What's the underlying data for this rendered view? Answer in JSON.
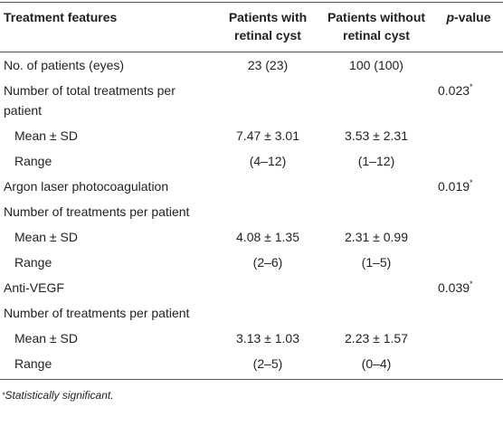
{
  "table": {
    "header": [
      {
        "text": "Treatment features"
      },
      {
        "text": "Patients with retinal cyst"
      },
      {
        "text": "Patients without retinal cyst"
      },
      {
        "italic": "p",
        "text": "-value"
      }
    ],
    "rows": [
      {
        "label": "No. of patients (eyes)",
        "with": "23 (23)",
        "without": "100 (100)"
      },
      {
        "label": "Number of total treatments per patient",
        "p": "0.023",
        "mark": "*"
      },
      {
        "label": "Mean ± SD",
        "indent": true,
        "with": "7.47 ± 3.01",
        "without": "3.53 ± 2.31"
      },
      {
        "label": "Range",
        "indent": true,
        "with": "(4–12)",
        "without": "(1–12)"
      },
      {
        "label": "Argon laser photocoagulation",
        "p": "0.019",
        "mark": "*"
      },
      {
        "label": "Number of treatments per patient"
      },
      {
        "label": "Mean ± SD",
        "indent": true,
        "with": "4.08 ± 1.35",
        "without": "2.31 ± 0.99"
      },
      {
        "label": "Range",
        "indent": true,
        "with": "(2–6)",
        "without": "(1–5)"
      },
      {
        "label": "Anti-VEGF",
        "p": "0.039",
        "mark": "*"
      },
      {
        "label": "Number of treatments per patient"
      },
      {
        "label": "Mean ± SD",
        "indent": true,
        "with": "3.13 ± 1.03",
        "without": "2.23 ± 1.57"
      },
      {
        "label": "Range",
        "indent": true,
        "with": "(2–5)",
        "without": "(0–4)"
      }
    ],
    "footnote": {
      "mark": "*",
      "text": "Statistically significant."
    }
  }
}
